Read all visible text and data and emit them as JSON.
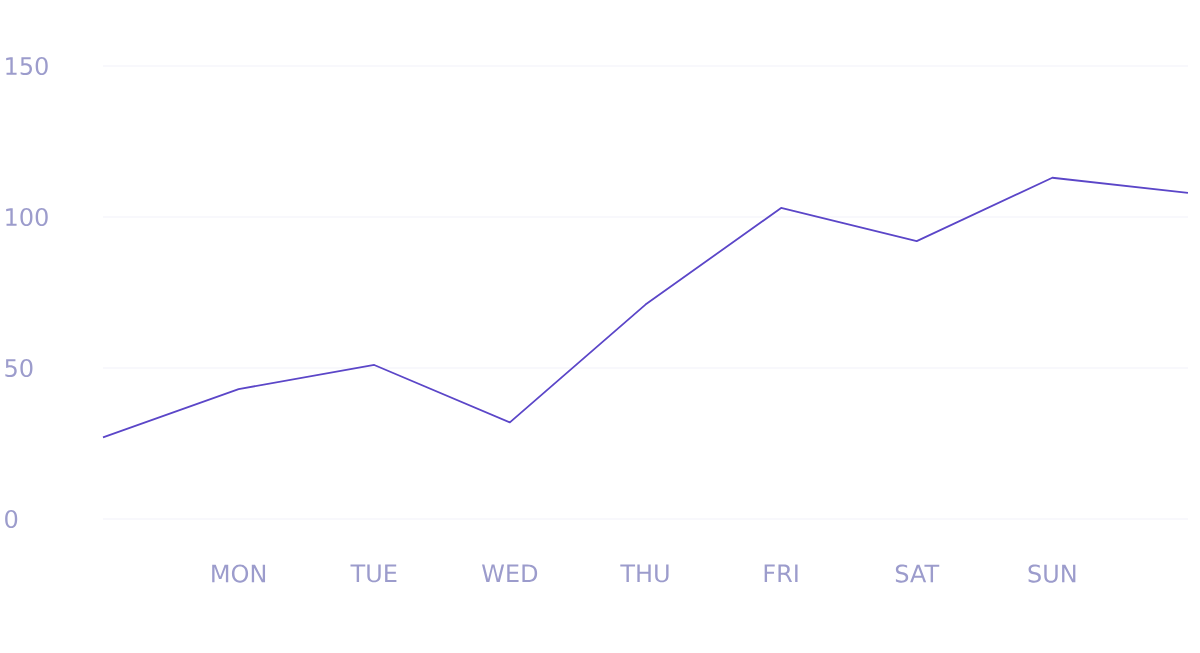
{
  "chart_data": {
    "type": "line",
    "categories": [
      null,
      "MON",
      "TUE",
      "WED",
      "THU",
      "FRI",
      "SAT",
      "SUN",
      null
    ],
    "series": [
      {
        "color": "#5b46c8",
        "values": [
          27,
          43,
          51,
          32,
          71,
          103,
          92,
          113,
          108
        ]
      }
    ],
    "ylim": [
      0,
      150
    ],
    "yticks": [
      0,
      50,
      100,
      150
    ],
    "grid": "y",
    "marker": "none",
    "line_style": "solid"
  }
}
